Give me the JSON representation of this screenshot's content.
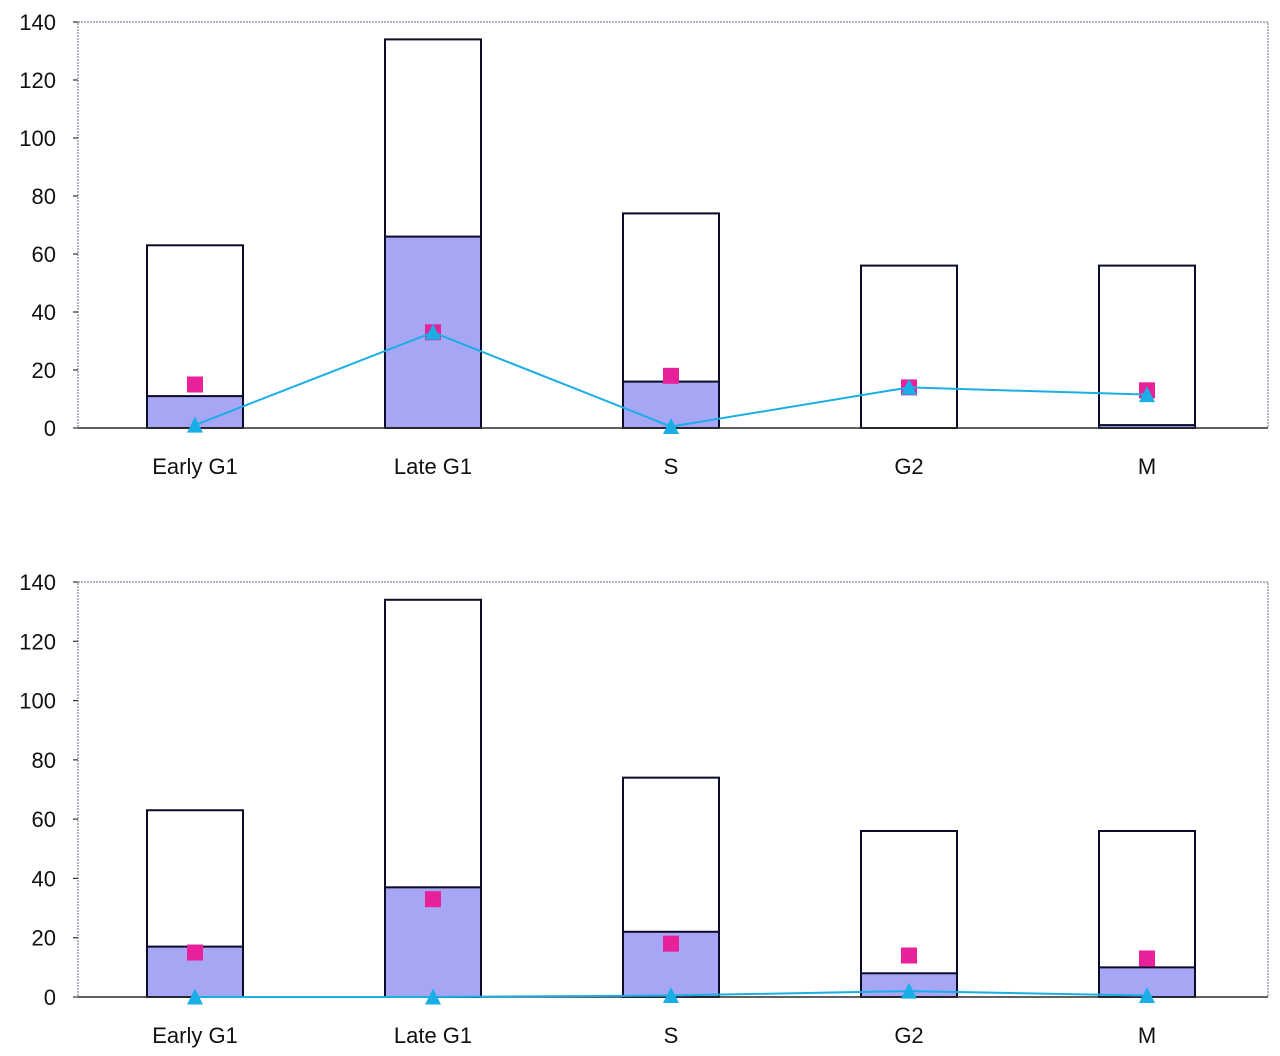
{
  "chart_data": [
    {
      "type": "bar",
      "categories": [
        "Early G1",
        "Late G1",
        "S",
        "G2",
        "M"
      ],
      "ylim": [
        0,
        140
      ],
      "yticks": [
        0,
        20,
        40,
        60,
        80,
        100,
        120,
        140
      ],
      "grid": false,
      "series": [
        {
          "kind": "bar-outline",
          "values": [
            63,
            134,
            74,
            56,
            56
          ]
        },
        {
          "kind": "bar-fill",
          "values": [
            11,
            66,
            16,
            0,
            1
          ]
        },
        {
          "kind": "square-markers",
          "values": [
            15,
            33,
            18,
            14,
            13
          ]
        },
        {
          "kind": "triangle-line",
          "values": [
            1,
            33,
            0.5,
            14,
            11.5
          ]
        }
      ]
    },
    {
      "type": "bar",
      "categories": [
        "Early G1",
        "Late G1",
        "S",
        "G2",
        "M"
      ],
      "ylim": [
        0,
        140
      ],
      "yticks": [
        0,
        20,
        40,
        60,
        80,
        100,
        120,
        140
      ],
      "grid": false,
      "series": [
        {
          "kind": "bar-outline",
          "values": [
            63,
            134,
            74,
            56,
            56
          ]
        },
        {
          "kind": "bar-fill",
          "values": [
            17,
            37,
            22,
            8,
            10
          ]
        },
        {
          "kind": "square-markers",
          "values": [
            15,
            33,
            18,
            14,
            13
          ]
        },
        {
          "kind": "triangle-line",
          "values": [
            0,
            0,
            0.5,
            2,
            0.5
          ]
        }
      ]
    }
  ],
  "colors": {
    "fill": "#a6a6f4",
    "outline": "#0b0b2a",
    "square": "#e8219a",
    "triangle": "#19aee6",
    "frame": "#7d8a9c"
  }
}
